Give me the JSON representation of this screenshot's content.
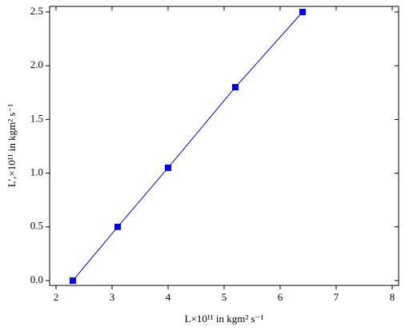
{
  "chart_data": {
    "type": "line",
    "x_label": "L×10¹¹ in kgm² s⁻¹",
    "y_label": "L',×10¹¹ in kgm² s⁻¹",
    "x": [
      2.3,
      3.1,
      4,
      5.2,
      6.4
    ],
    "values": [
      0,
      0.5,
      1.05,
      1.8,
      2.5
    ],
    "color": "#0000ff",
    "marker": "square",
    "xlim": [
      1.886,
      8.114
    ],
    "xticks": [
      2,
      3,
      4,
      5,
      6,
      7,
      8
    ],
    "ylim": [
      -0.045,
      2.552
    ],
    "yticks": [
      {
        "value": 0,
        "label": "0.0"
      },
      0.5,
      {
        "value": 1,
        "label": "1.0"
      },
      1.5,
      {
        "value": 2,
        "label": "2.0"
      },
      2.5
    ]
  }
}
